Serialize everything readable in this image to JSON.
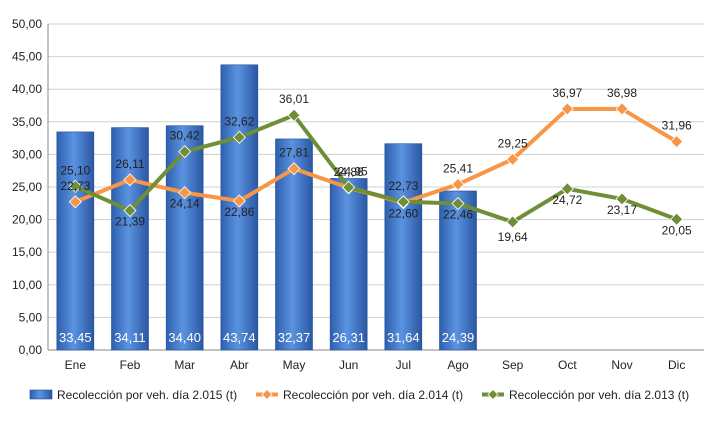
{
  "chart_data": {
    "type": "bar+line",
    "categories": [
      "Ene",
      "Feb",
      "Mar",
      "Abr",
      "May",
      "Jun",
      "Jul",
      "Ago",
      "Sep",
      "Oct",
      "Nov",
      "Dic"
    ],
    "ylim": [
      0,
      50
    ],
    "yticks": [
      "0,00",
      "5,00",
      "10,00",
      "15,00",
      "20,00",
      "25,00",
      "30,00",
      "35,00",
      "40,00",
      "45,00",
      "50,00"
    ],
    "grid": "horizontal",
    "legend_position": "bottom",
    "series": [
      {
        "name": "Recolección por veh. día 2.015 (t)",
        "kind": "bar",
        "color": "#3D76C8",
        "values": [
          33.45,
          34.11,
          34.4,
          43.74,
          32.37,
          26.31,
          31.64,
          24.39,
          null,
          null,
          null,
          null
        ],
        "labels": [
          "33,45",
          "34,11",
          "34,40",
          "43,74",
          "32,37",
          "26,31",
          "31,64",
          "24,39",
          "",
          "",
          "",
          ""
        ]
      },
      {
        "name": "Recolección por veh. día 2.014 (t)",
        "kind": "line",
        "color": "#F79646",
        "values": [
          22.73,
          26.11,
          24.14,
          22.86,
          27.81,
          24.88,
          22.6,
          25.41,
          29.25,
          36.97,
          36.98,
          31.96
        ],
        "labels": [
          "22,73",
          "26,11",
          "24,14",
          "22,86",
          "27,81",
          "24,88",
          "22,60",
          "25,41",
          "29,25",
          "36,97",
          "36,98",
          "31,96"
        ]
      },
      {
        "name": "Recolección por veh. día 2.013 (t)",
        "kind": "line",
        "color": "#6E8E37",
        "values": [
          25.1,
          21.39,
          30.42,
          32.62,
          36.01,
          24.95,
          22.73,
          22.46,
          19.64,
          24.72,
          23.17,
          20.05
        ],
        "labels": [
          "25,10",
          "21,39",
          "30,42",
          "32,62",
          "36,01",
          "24,95",
          "22,73",
          "22,46",
          "19,64",
          "24,72",
          "23,17",
          "20,05"
        ]
      }
    ]
  }
}
